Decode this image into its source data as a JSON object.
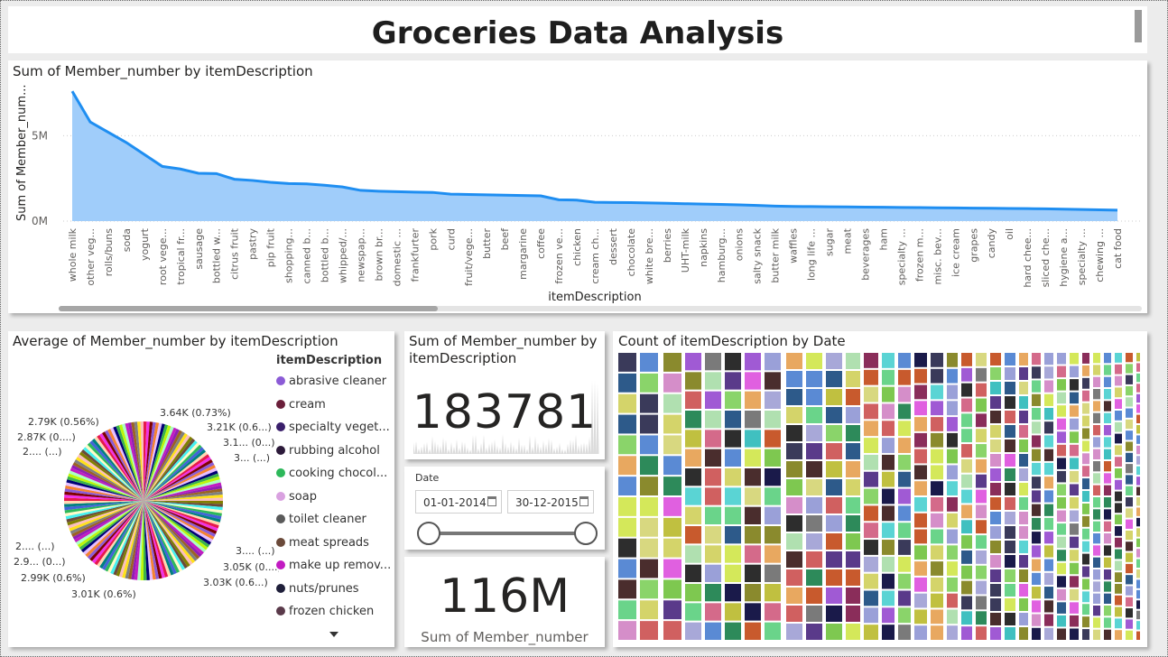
{
  "report": {
    "title": "Groceries Data Analysis"
  },
  "area_chart": {
    "title": "Sum of Member_number by itemDescription",
    "ylabel": "Sum of Member_num...",
    "xlabel": "itemDescription",
    "y_ticks": [
      "5M",
      "0M"
    ]
  },
  "pie_chart": {
    "title": "Average of Member_number by itemDescription",
    "legend_title": "itemDescription",
    "labels": [
      "3.64K (0.73%)",
      "3.21K (0.6...)",
      "3.1... (0...)",
      "3... (...)",
      "2.79K (0.56%)",
      "2.87K (0....)",
      "2.... (...)",
      "2.... (...)",
      "2.9... (0...)",
      "2.99K (0.6%)",
      "3.01K (0.6%)",
      "3.03K (0.6...)",
      "3.05K (0....)",
      "3.... (...)"
    ]
  },
  "card_sparkline": {
    "title": "Sum of Member_number by itemDescription",
    "value": "183781"
  },
  "date_slicer": {
    "label": "Date",
    "start": "01-01-2014",
    "end": "30-12-2015"
  },
  "card_total": {
    "value": "116M",
    "caption": "Sum of Member_number"
  },
  "treemap": {
    "title": "Count of itemDescription by Date"
  },
  "chart_data": [
    {
      "type": "area",
      "title": "Sum of Member_number by itemDescription",
      "xlabel": "itemDescription",
      "ylabel": "Sum of Member_num...",
      "ylim": [
        0,
        7500000
      ],
      "categories": [
        "whole milk",
        "other veg...",
        "rolls/buns",
        "soda",
        "yogurt",
        "root vege...",
        "tropical fr...",
        "sausage",
        "bottled w...",
        "citrus fruit",
        "pastry",
        "pip fruit",
        "shopping...",
        "canned b...",
        "bottled b...",
        "whipped/...",
        "newspap...",
        "brown br...",
        "domestic ...",
        "frankfurter",
        "pork",
        "curd",
        "fruit/vege...",
        "butter",
        "beef",
        "margarine",
        "coffee",
        "frozen ve...",
        "chicken",
        "cream ch...",
        "dessert",
        "chocolate",
        "white bre...",
        "berries",
        "UHT-milk",
        "napkins",
        "hamburg...",
        "onions",
        "salty snack",
        "butter milk",
        "waffles",
        "long life ...",
        "sugar",
        "meat",
        "beverages",
        "ham",
        "specialty ...",
        "frozen m...",
        "misc. bev...",
        "ice cream",
        "grapes",
        "candy",
        "oil",
        "hard chee...",
        "sliced che...",
        "hygiene a...",
        "specialty ...",
        "chewing ...",
        "cat food"
      ],
      "values": [
        7600000,
        5800000,
        5200000,
        4600000,
        3900000,
        3200000,
        3050000,
        2800000,
        2780000,
        2450000,
        2380000,
        2270000,
        2200000,
        2180000,
        2100000,
        2000000,
        1800000,
        1750000,
        1720000,
        1700000,
        1680000,
        1580000,
        1560000,
        1540000,
        1520000,
        1500000,
        1480000,
        1250000,
        1230000,
        1100000,
        1090000,
        1080000,
        1060000,
        1040000,
        1020000,
        1000000,
        980000,
        950000,
        920000,
        880000,
        860000,
        850000,
        840000,
        830000,
        820000,
        810000,
        800000,
        790000,
        780000,
        770000,
        760000,
        750000,
        740000,
        730000,
        720000,
        700000,
        680000,
        660000,
        640000
      ]
    },
    {
      "type": "pie",
      "title": "Average of Member_number by itemDescription",
      "series": [
        {
          "name": "itemDescription",
          "categories": [
            "abrasive cleaner",
            "cream",
            "specialty veget...",
            "rubbing alcohol",
            "cooking chocol...",
            "soap",
            "toilet cleaner",
            "meat spreads",
            "make up remov...",
            "nuts/prunes",
            "frozen chicken"
          ]
        }
      ],
      "legend_colors": [
        "#8b5bd6",
        "#6b1f3a",
        "#3a1f6b",
        "#2c1a3a",
        "#2db85a",
        "#d9a1e0",
        "#5a5a5a",
        "#6b4a3a",
        "#c21bc2",
        "#1f1f3a",
        "#5a3a4a"
      ]
    }
  ]
}
